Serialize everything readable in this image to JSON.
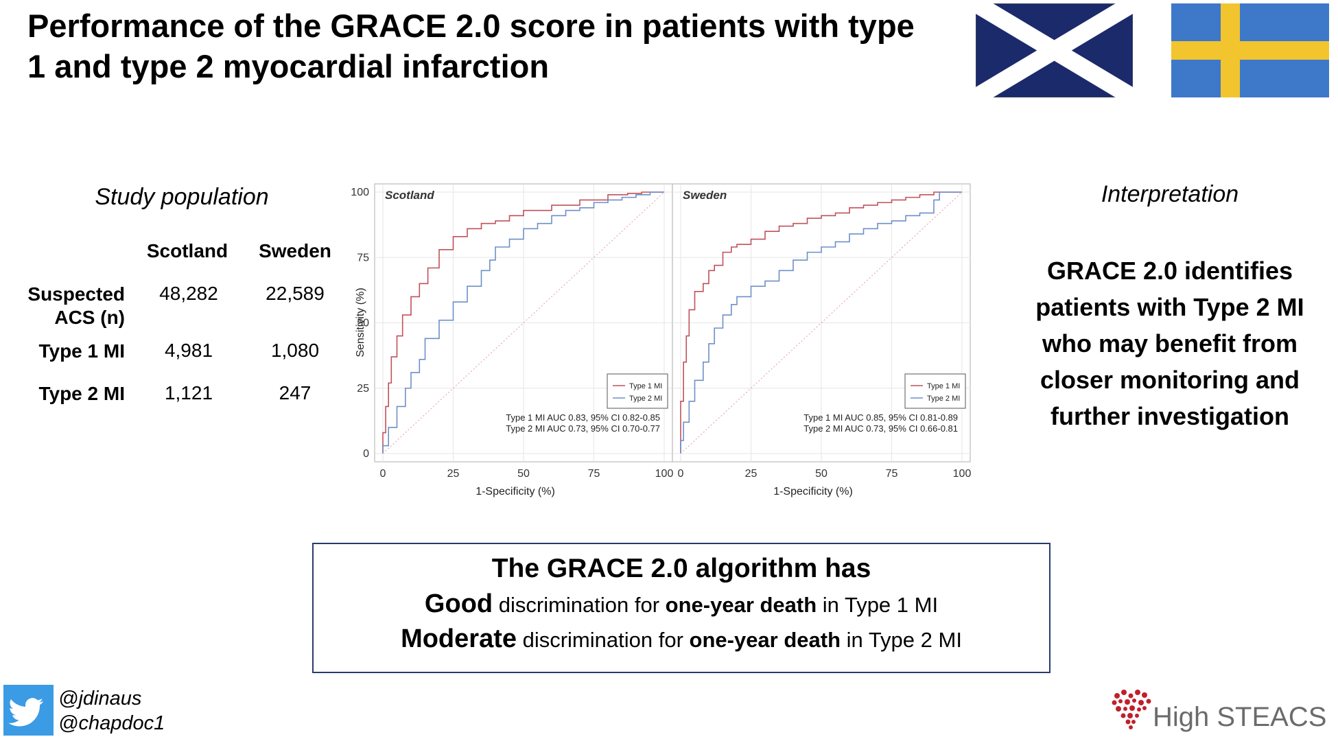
{
  "title": "Performance of the GRACE 2.0 score in patients with type 1 and type 2 myocardial infarction",
  "flags": [
    {
      "name": "Scotland",
      "colors": {
        "field": "#1b2a6b",
        "cross": "#ffffff"
      }
    },
    {
      "name": "Sweden",
      "colors": {
        "field": "#3e78c9",
        "cross": "#f2c52e"
      }
    }
  ],
  "study": {
    "heading": "Study population",
    "columns": [
      "Scotland",
      "Sweden"
    ],
    "rows": [
      {
        "label_line1": "Suspected",
        "label_line2": "ACS (n)",
        "values": [
          "48,282",
          "22,589"
        ]
      },
      {
        "label": "Type 1 MI",
        "values": [
          "4,981",
          "1,080"
        ]
      },
      {
        "label": "Type 2 MI",
        "values": [
          "1,121",
          "247"
        ]
      }
    ]
  },
  "interpretation": {
    "heading": "Interpretation",
    "lines": [
      "GRACE 2.0 identifies",
      "patients with Type 2 MI",
      "who may benefit from",
      "closer monitoring and",
      "further investigation"
    ]
  },
  "chart_data": [
    {
      "type": "line",
      "title": "Scotland",
      "xlabel": "1-Specificity (%)",
      "ylabel": "Sensitivity (%)",
      "xlim": [
        0,
        100
      ],
      "ylim": [
        0,
        100
      ],
      "xticks": [
        0,
        25,
        50,
        75,
        100
      ],
      "yticks": [
        0,
        25,
        50,
        75,
        100
      ],
      "grid": true,
      "legend_position": "bottom-right",
      "colors": {
        "type1": "#c0505a",
        "type2": "#6d8fc8",
        "diag": "#e8a9ae"
      },
      "series": [
        {
          "name": "Type 1 MI",
          "x": [
            0,
            1,
            2,
            3,
            5,
            7,
            10,
            13,
            16,
            20,
            25,
            30,
            35,
            40,
            45,
            50,
            60,
            70,
            80,
            87,
            92,
            100
          ],
          "y": [
            0,
            8,
            18,
            27,
            37,
            45,
            53,
            60,
            65,
            71,
            78,
            83,
            86,
            88,
            89,
            91,
            93,
            95,
            97,
            99,
            99.5,
            100
          ]
        },
        {
          "name": "Type 2 MI",
          "x": [
            0,
            2,
            5,
            8,
            10,
            13,
            15,
            20,
            25,
            30,
            35,
            38,
            40,
            45,
            50,
            55,
            60,
            65,
            70,
            75,
            80,
            85,
            90,
            95,
            100
          ],
          "y": [
            0,
            3,
            10,
            18,
            25,
            31,
            36,
            44,
            51,
            58,
            64,
            70,
            74,
            79,
            82,
            86,
            88,
            91,
            93,
            94,
            96,
            97,
            98,
            99,
            100
          ]
        },
        {
          "name": "reference",
          "x": [
            0,
            100
          ],
          "y": [
            0,
            100
          ]
        }
      ],
      "annotations": [
        "Type 1 MI AUC 0.83, 95% CI 0.82-0.85",
        "Type 2 MI AUC 0.73, 95% CI 0.70-0.77"
      ]
    },
    {
      "type": "line",
      "title": "Sweden",
      "xlabel": "1-Specificity (%)",
      "xlim": [
        0,
        100
      ],
      "ylim": [
        0,
        100
      ],
      "xticks": [
        0,
        25,
        50,
        75,
        100
      ],
      "grid": true,
      "legend_position": "bottom-right",
      "colors": {
        "type1": "#c0505a",
        "type2": "#6d8fc8",
        "diag": "#e8a9ae"
      },
      "series": [
        {
          "name": "Type 1 MI",
          "x": [
            0,
            1,
            2,
            3,
            5,
            8,
            10,
            12,
            15,
            18,
            20,
            25,
            30,
            35,
            40,
            45,
            50,
            55,
            60,
            65,
            70,
            75,
            80,
            85,
            90,
            100
          ],
          "y": [
            0,
            20,
            35,
            45,
            55,
            62,
            65,
            70,
            72,
            77,
            79,
            80,
            82,
            85,
            87,
            88,
            90,
            91,
            92,
            94,
            95,
            96,
            97,
            98,
            99,
            100
          ]
        },
        {
          "name": "Type 2 MI",
          "x": [
            0,
            1,
            3,
            5,
            8,
            10,
            12,
            15,
            18,
            20,
            25,
            30,
            35,
            40,
            45,
            50,
            55,
            60,
            65,
            70,
            75,
            80,
            85,
            90,
            92,
            95,
            100
          ],
          "y": [
            0,
            5,
            12,
            20,
            28,
            35,
            42,
            48,
            53,
            57,
            60,
            64,
            66,
            70,
            74,
            77,
            79,
            81,
            84,
            86,
            88,
            89,
            91,
            92,
            97,
            100,
            100
          ]
        },
        {
          "name": "reference",
          "x": [
            0,
            100
          ],
          "y": [
            0,
            100
          ]
        }
      ],
      "annotations": [
        "Type 1 MI AUC 0.85, 95% CI 0.81-0.89",
        "Type 2 MI AUC 0.73, 95% CI 0.66-0.81"
      ]
    }
  ],
  "summary": {
    "title": "The GRACE 2.0 algorithm has",
    "line1": {
      "bold1": "Good",
      "text1": " discrimination for ",
      "bold2": "one-year death",
      "text2": " in Type 1 MI"
    },
    "line2": {
      "bold1": "Moderate",
      "text1": " discrimination for ",
      "bold2": "one-year death",
      "text2": " in Type 2 MI"
    }
  },
  "social": {
    "icon": "twitter-icon",
    "handles": [
      "@jdinaus",
      "@chapdoc1"
    ]
  },
  "logo": {
    "text": "High STEACS",
    "icon": "heart-icon",
    "color": "#c0202a"
  }
}
